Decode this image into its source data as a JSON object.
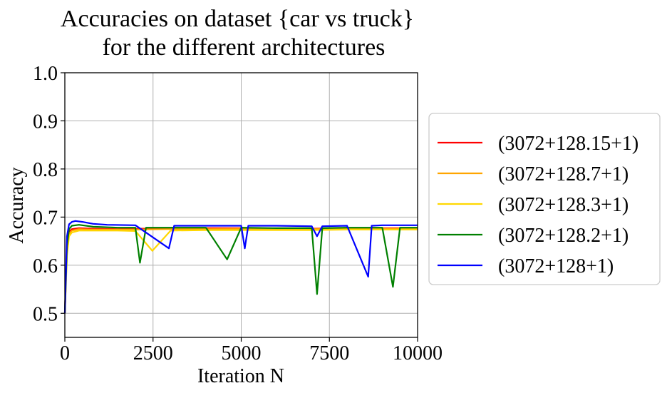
{
  "chart_data": {
    "type": "line",
    "title": [
      "Accuracies on dataset {car vs truck}",
      "for the different architectures"
    ],
    "xlabel": "Iteration N",
    "ylabel": "Accuracy",
    "xlim": [
      0,
      10000
    ],
    "ylim": [
      0.45,
      1.0
    ],
    "xticks": [
      0,
      2500,
      5000,
      7500,
      10000
    ],
    "yticks": [
      0.5,
      0.6,
      0.7,
      0.8,
      0.9,
      1.0
    ],
    "xtick_labels": [
      "0",
      "2500",
      "5000",
      "7500",
      "10000"
    ],
    "ytick_labels": [
      "0.5",
      "0.6",
      "0.7",
      "0.8",
      "0.9",
      "1.0"
    ],
    "grid": true,
    "legend_position": "right-outside",
    "series": [
      {
        "name": "(3072+128.15+1)",
        "color": "#ff0000",
        "x": [
          0,
          60,
          120,
          200,
          400,
          800,
          1500,
          2000,
          3000,
          4000,
          5000,
          6000,
          7000,
          8000,
          9000,
          10000
        ],
        "y": [
          0.5,
          0.64,
          0.67,
          0.675,
          0.677,
          0.676,
          0.675,
          0.676,
          0.676,
          0.677,
          0.677,
          0.676,
          0.676,
          0.677,
          0.677,
          0.677
        ]
      },
      {
        "name": "(3072+128.7+1)",
        "color": "#ffa500",
        "x": [
          0,
          60,
          120,
          200,
          400,
          800,
          1500,
          2000,
          3000,
          4000,
          5000,
          6000,
          7000,
          8000,
          9000,
          10000
        ],
        "y": [
          0.5,
          0.63,
          0.665,
          0.672,
          0.675,
          0.674,
          0.674,
          0.674,
          0.675,
          0.675,
          0.676,
          0.675,
          0.675,
          0.676,
          0.676,
          0.676
        ]
      },
      {
        "name": "(3072+128.3+1)",
        "color": "#ffd700",
        "x": [
          0,
          60,
          120,
          200,
          400,
          800,
          1500,
          2000,
          2480,
          3000,
          4000,
          5000,
          6000,
          7000,
          8000,
          9000,
          10000
        ],
        "y": [
          0.5,
          0.62,
          0.66,
          0.668,
          0.672,
          0.672,
          0.672,
          0.671,
          0.63,
          0.672,
          0.673,
          0.673,
          0.673,
          0.673,
          0.674,
          0.674,
          0.674
        ]
      },
      {
        "name": "(3072+128.2+1)",
        "color": "#008000",
        "x": [
          0,
          60,
          120,
          200,
          400,
          800,
          1500,
          2000,
          2130,
          2300,
          3000,
          4000,
          4600,
          5000,
          6000,
          7000,
          7150,
          7300,
          8000,
          9000,
          9300,
          9500,
          10000
        ],
        "y": [
          0.5,
          0.64,
          0.675,
          0.682,
          0.684,
          0.68,
          0.678,
          0.678,
          0.605,
          0.678,
          0.678,
          0.678,
          0.612,
          0.678,
          0.677,
          0.677,
          0.54,
          0.677,
          0.678,
          0.678,
          0.555,
          0.678,
          0.678
        ]
      },
      {
        "name": "(3072+128+1)",
        "color": "#0000ff",
        "x": [
          0,
          60,
          120,
          200,
          300,
          500,
          800,
          1200,
          2000,
          2950,
          3100,
          4000,
          5000,
          5100,
          5200,
          6000,
          7000,
          7150,
          7300,
          8000,
          8600,
          8700,
          9000,
          10000
        ],
        "y": [
          0.5,
          0.66,
          0.685,
          0.69,
          0.692,
          0.69,
          0.686,
          0.684,
          0.683,
          0.635,
          0.682,
          0.682,
          0.682,
          0.635,
          0.682,
          0.682,
          0.681,
          0.66,
          0.681,
          0.682,
          0.576,
          0.682,
          0.683,
          0.683
        ]
      }
    ]
  }
}
